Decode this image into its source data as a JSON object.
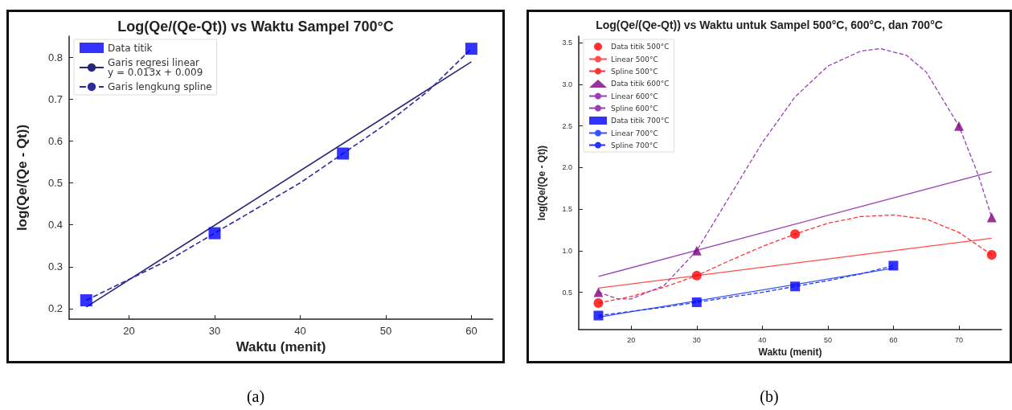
{
  "chart_data": [
    {
      "type": "scatter",
      "title": "Log(Qe/(Qe-Qt)) vs Waktu Sampel 700°C",
      "xlabel": "Waktu (menit)",
      "ylabel": "log(Qe/(Qe - Qt))",
      "annotations": [
        "(a)"
      ],
      "xlim": [
        13,
        62.5
      ],
      "ylim": [
        0.175,
        0.85
      ],
      "xticks": [
        20,
        30,
        40,
        50,
        60
      ],
      "yticks": [
        0.2,
        0.3,
        0.4,
        0.5,
        0.6,
        0.7,
        0.8
      ],
      "grid": false,
      "legend": "top left",
      "series": [
        {
          "name": "Data titik",
          "marker": "square",
          "color": "#0000ff",
          "x": [
            15,
            30,
            45,
            60
          ],
          "values": [
            0.22,
            0.38,
            0.57,
            0.82
          ]
        },
        {
          "name": "Garis regresi linear\ny = 0.013x + 0.009",
          "type": "line",
          "marker": "none",
          "line_style": "solid",
          "color": "#26267a",
          "x": [
            15,
            60
          ],
          "values": [
            0.204,
            0.789
          ]
        },
        {
          "name": "Garis lengkung spline",
          "type": "line",
          "marker": "none",
          "line_style": "dashed",
          "color": "#2c2c9c",
          "x": [
            15,
            20,
            25,
            30,
            35,
            40,
            45,
            50,
            55,
            60
          ],
          "values": [
            0.22,
            0.27,
            0.32,
            0.38,
            0.44,
            0.5,
            0.57,
            0.64,
            0.72,
            0.82
          ]
        }
      ]
    },
    {
      "type": "scatter",
      "title": "Log(Qe/(Qe-Qt)) vs Waktu untuk Sampel 500°C, 600°C, dan 700°C",
      "xlabel": "Waktu (menit)",
      "ylabel": "log(Qe/(Qe - Qt))",
      "annotations": [
        "(b)"
      ],
      "xlim": [
        12,
        76.5
      ],
      "ylim": [
        0.05,
        3.58
      ],
      "xticks": [
        20,
        30,
        40,
        50,
        60,
        70
      ],
      "yticks": [
        0.5,
        {
          "value": 1,
          "label": "1.0"
        },
        1.5,
        {
          "value": 2,
          "label": "2.0"
        },
        2.5,
        {
          "value": 3,
          "label": "3.0"
        },
        3.5
      ],
      "grid": false,
      "legend": "top left",
      "series": [
        {
          "name": "Data titik 500°C",
          "marker": "circle",
          "color": "#ff0000",
          "x": [
            15,
            30,
            45,
            75
          ],
          "values": [
            0.37,
            0.7,
            1.2,
            0.95
          ]
        },
        {
          "name": "Linear 500°C",
          "type": "line",
          "marker": "none",
          "line_style": "solid",
          "color": "#ff4d4d",
          "x": [
            15,
            75
          ],
          "values": [
            0.55,
            1.15
          ]
        },
        {
          "name": "Spline 500°C",
          "type": "line",
          "marker": "none",
          "line_style": "dashed",
          "color": "#ff3333",
          "x": [
            15,
            20,
            25,
            30,
            35,
            40,
            45,
            50,
            55,
            60,
            65,
            70,
            75
          ],
          "values": [
            0.37,
            0.45,
            0.56,
            0.7,
            0.88,
            1.05,
            1.2,
            1.33,
            1.41,
            1.43,
            1.38,
            1.22,
            0.95
          ]
        },
        {
          "name": "Data titik 600°C",
          "marker": "triangle",
          "color": "#800080",
          "x": [
            15,
            30,
            70,
            75
          ],
          "values": [
            0.5,
            1.0,
            2.5,
            1.4
          ]
        },
        {
          "name": "Linear 600°C",
          "type": "line",
          "marker": "none",
          "line_style": "solid",
          "color": "#9b3fb5",
          "x": [
            15,
            75
          ],
          "values": [
            0.69,
            1.95
          ]
        },
        {
          "name": "Spline 600°C",
          "type": "line",
          "marker": "none",
          "line_style": "dashed",
          "color": "#9b3fb5",
          "x": [
            15,
            18,
            20,
            25,
            30,
            35,
            40,
            45,
            50,
            55,
            58,
            62,
            65,
            70,
            73,
            75
          ],
          "values": [
            0.5,
            0.42,
            0.42,
            0.58,
            1.0,
            1.65,
            2.3,
            2.85,
            3.22,
            3.4,
            3.43,
            3.35,
            3.15,
            2.5,
            1.9,
            1.4
          ]
        },
        {
          "name": "Data titik 700°C",
          "marker": "square",
          "color": "#0000ff",
          "x": [
            15,
            30,
            45,
            60
          ],
          "values": [
            0.22,
            0.38,
            0.57,
            0.82
          ]
        },
        {
          "name": "Linear 700°C",
          "type": "line",
          "marker": "none",
          "line_style": "solid",
          "color": "#3355ff",
          "x": [
            15,
            60
          ],
          "values": [
            0.2,
            0.79
          ]
        },
        {
          "name": "Spline 700°C",
          "type": "line",
          "marker": "none",
          "line_style": "dashed",
          "color": "#2233ff",
          "x": [
            15,
            20,
            25,
            30,
            35,
            40,
            45,
            50,
            55,
            60
          ],
          "values": [
            0.22,
            0.27,
            0.32,
            0.38,
            0.44,
            0.5,
            0.57,
            0.64,
            0.72,
            0.82
          ]
        }
      ]
    }
  ]
}
